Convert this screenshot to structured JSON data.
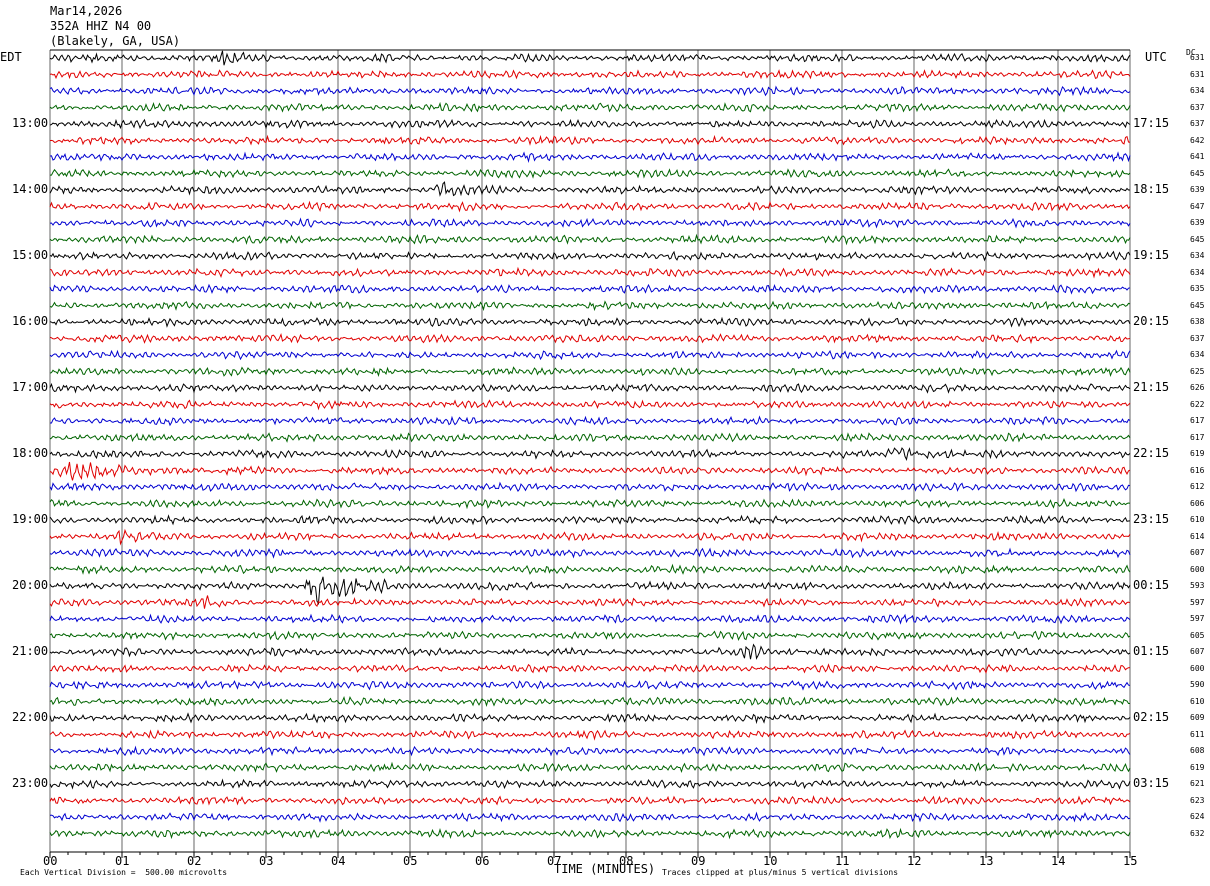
{
  "header": {
    "date": "Mar14,2026",
    "channel": "352A HHZ N4 00",
    "location": "(Blakely, GA, USA)"
  },
  "left_axis_label": "EDT",
  "right_axis_label": "UTC",
  "dc_label": "DC",
  "footer": {
    "scale_note": "Each Vertical Division =  500.00 microvolts",
    "x_axis_label": "TIME (MINUTES)",
    "clip_note": "Traces clipped at plus/minus 5 vertical divisions"
  },
  "colors": {
    "black": "#000000",
    "red": "#e00000",
    "blue": "#0000d0",
    "green": "#006400",
    "grid": "#000000"
  },
  "chart_data": {
    "type": "line",
    "title": "352A HHZ N4 00",
    "xlabel": "TIME (MINUTES)",
    "xlim": [
      0,
      15
    ],
    "x_ticks": [
      "00",
      "01",
      "02",
      "03",
      "04",
      "05",
      "06",
      "07",
      "08",
      "09",
      "10",
      "11",
      "12",
      "13",
      "14",
      "15"
    ],
    "trace_color_cycle": [
      "black",
      "red",
      "blue",
      "green"
    ],
    "trace_count": 48,
    "left_hour_labels": [
      {
        "trace": 4,
        "label": "13:00"
      },
      {
        "trace": 8,
        "label": "14:00"
      },
      {
        "trace": 12,
        "label": "15:00"
      },
      {
        "trace": 16,
        "label": "16:00"
      },
      {
        "trace": 20,
        "label": "17:00"
      },
      {
        "trace": 24,
        "label": "18:00"
      },
      {
        "trace": 28,
        "label": "19:00"
      },
      {
        "trace": 32,
        "label": "20:00"
      },
      {
        "trace": 36,
        "label": "21:00"
      },
      {
        "trace": 40,
        "label": "22:00"
      },
      {
        "trace": 44,
        "label": "23:00"
      }
    ],
    "right_hour_labels": [
      {
        "trace": 4,
        "label": "17:15"
      },
      {
        "trace": 8,
        "label": "18:15"
      },
      {
        "trace": 12,
        "label": "19:15"
      },
      {
        "trace": 16,
        "label": "20:15"
      },
      {
        "trace": 20,
        "label": "21:15"
      },
      {
        "trace": 24,
        "label": "22:15"
      },
      {
        "trace": 28,
        "label": "23:15"
      },
      {
        "trace": 32,
        "label": "00:15"
      },
      {
        "trace": 36,
        "label": "01:15"
      },
      {
        "trace": 40,
        "label": "02:15"
      },
      {
        "trace": 44,
        "label": "03:15"
      }
    ],
    "dc_offsets": [
      "631",
      "631",
      "634",
      "637",
      "637",
      "642",
      "641",
      "645",
      "639",
      "647",
      "639",
      "645",
      "634",
      "634",
      "635",
      "645",
      "638",
      "637",
      "634",
      "625",
      "626",
      "622",
      "617",
      "617",
      "619",
      "616",
      "612",
      "606",
      "610",
      "614",
      "607",
      "600",
      "593",
      "597",
      "597",
      "605",
      "607",
      "600",
      "590",
      "610",
      "609",
      "611",
      "608",
      "619",
      "621",
      "623",
      "624",
      "632"
    ],
    "events": [
      {
        "trace": 0,
        "start_min": 2.3,
        "end_min": 3.0,
        "amp": 0.9
      },
      {
        "trace": 8,
        "start_min": 5.3,
        "end_min": 5.9,
        "amp": 1.1
      },
      {
        "trace": 24,
        "start_min": 11.6,
        "end_min": 12.6,
        "amp": 1.0
      },
      {
        "trace": 25,
        "start_min": 0.0,
        "end_min": 2.0,
        "amp": 1.4
      },
      {
        "trace": 29,
        "start_min": 0.9,
        "end_min": 1.3,
        "amp": 0.8
      },
      {
        "trace": 32,
        "start_min": 3.5,
        "end_min": 4.9,
        "amp": 2.4
      },
      {
        "trace": 33,
        "start_min": 2.1,
        "end_min": 2.4,
        "amp": 1.2
      },
      {
        "trace": 36,
        "start_min": 9.5,
        "end_min": 10.8,
        "amp": 0.9
      }
    ]
  }
}
